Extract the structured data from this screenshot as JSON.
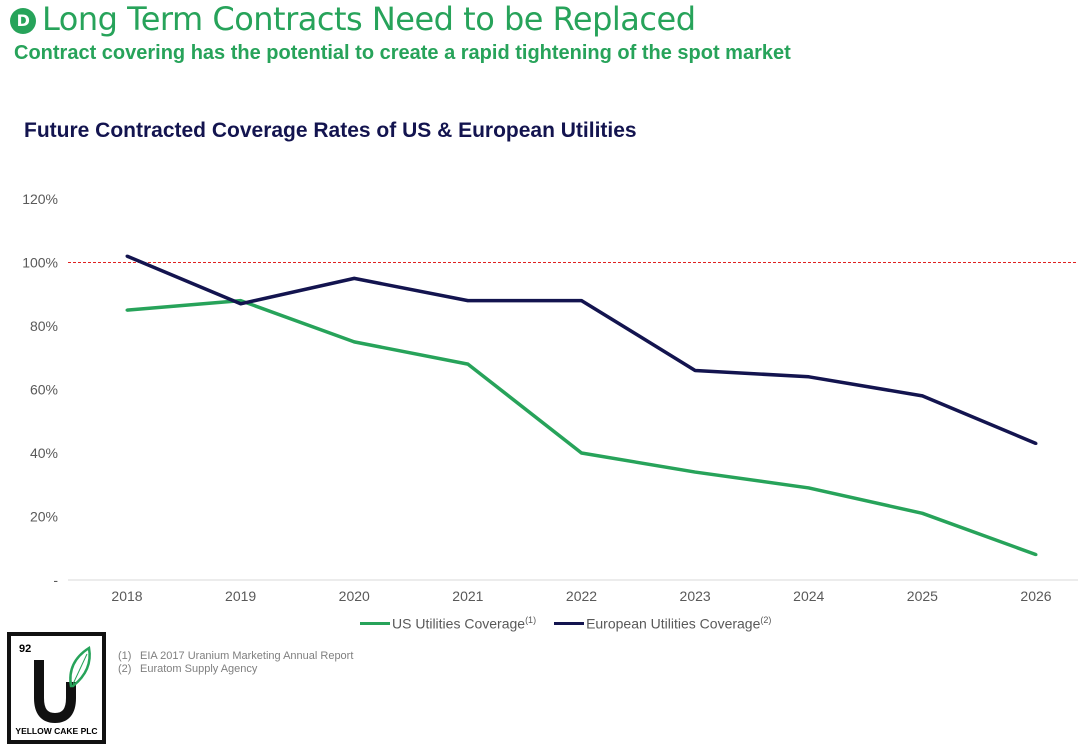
{
  "header": {
    "badge": "D",
    "title": "Long Term Contracts Need to be Replaced",
    "subtitle": "Contract covering has the potential to create a rapid tightening of the spot market"
  },
  "chart_data": {
    "type": "line",
    "title": "Future Contracted Coverage Rates of US & European Utilities",
    "categories": [
      "2018",
      "2019",
      "2020",
      "2021",
      "2022",
      "2023",
      "2024",
      "2025",
      "2026"
    ],
    "y_ticks": [
      "-",
      "20%",
      "40%",
      "60%",
      "80%",
      "100%",
      "120%"
    ],
    "ylim": [
      0,
      120
    ],
    "reference_line": {
      "value": 100,
      "color": "#e02020",
      "style": "dashed"
    },
    "grid": false,
    "legend_position": "bottom",
    "series": [
      {
        "name": "US Utilities Coverage",
        "note": "(1)",
        "color": "#27a35a",
        "values": [
          85,
          88,
          75,
          68,
          40,
          34,
          29,
          21,
          8
        ]
      },
      {
        "name": "European Utilities Coverage",
        "note": "(2)",
        "color": "#13144f",
        "values": [
          102,
          87,
          95,
          88,
          88,
          66,
          64,
          58,
          43
        ]
      }
    ]
  },
  "footnotes": [
    {
      "n": "(1)",
      "text": "EIA 2017 Uranium Marketing Annual Report"
    },
    {
      "n": "(2)",
      "text": "Euratom Supply Agency"
    }
  ],
  "logo": {
    "number": "92",
    "name": "YELLOW CAKE PLC"
  }
}
